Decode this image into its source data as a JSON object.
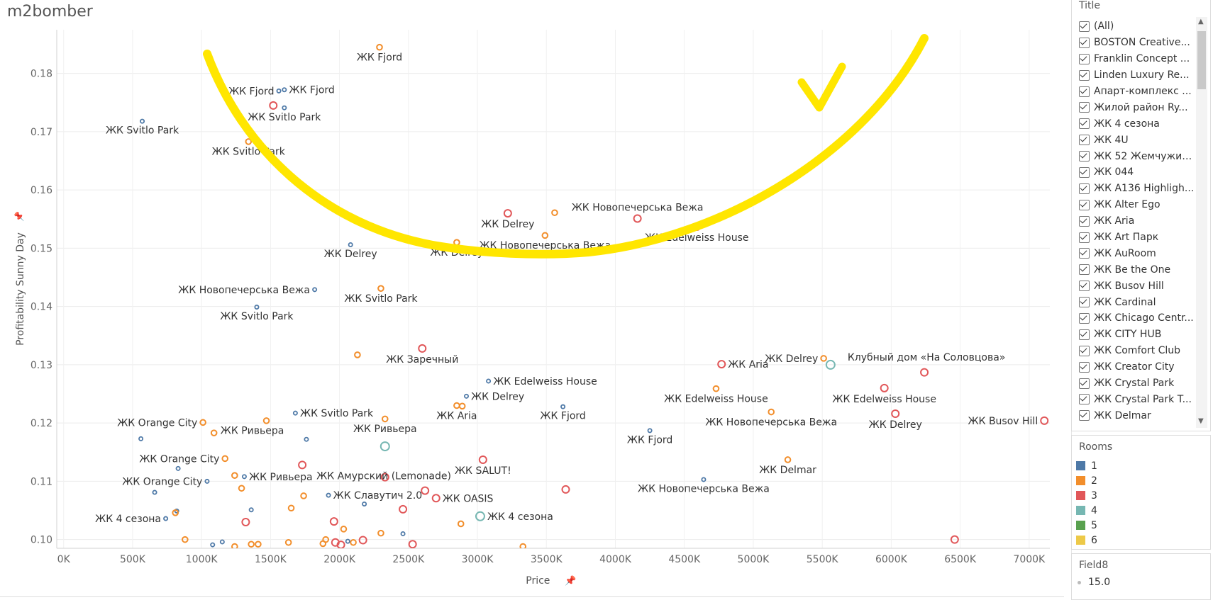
{
  "app_title": "m2bomber",
  "chart_data": {
    "type": "scatter",
    "xlabel": "Price",
    "ylabel": "Profitability Sunny Day",
    "xlim": [
      -50000,
      7150000
    ],
    "ylim": [
      0.0985,
      0.1875
    ],
    "x_ticks": [
      0,
      500000,
      1000000,
      1500000,
      2000000,
      2500000,
      3000000,
      3500000,
      4000000,
      4500000,
      5000000,
      5500000,
      6000000,
      6500000,
      7000000
    ],
    "x_tick_labels": [
      "0K",
      "500K",
      "1000K",
      "1500K",
      "2000K",
      "2500K",
      "3000K",
      "3500K",
      "4000K",
      "4500K",
      "5000K",
      "5500K",
      "6000K",
      "6500K",
      "7000K"
    ],
    "y_ticks": [
      0.1,
      0.11,
      0.12,
      0.13,
      0.14,
      0.15,
      0.16,
      0.17,
      0.18
    ],
    "y_tick_labels": [
      "0.10",
      "0.11",
      "0.12",
      "0.13",
      "0.14",
      "0.15",
      "0.16",
      "0.17",
      "0.18"
    ],
    "grid": true,
    "room_colors": {
      "1": "#4e79a7",
      "2": "#f28e2b",
      "3": "#e15759",
      "4": "#76b7b2",
      "5": "#59a14f",
      "6": "#edc948"
    },
    "points": [
      {
        "x": 2290000,
        "y": 0.1845,
        "rooms": 2,
        "label": "ЖК Fjord",
        "lp": "below"
      },
      {
        "x": 1560000,
        "y": 0.177,
        "rooms": 1,
        "label": "ЖК Fjord",
        "lp": "left"
      },
      {
        "x": 1600000,
        "y": 0.1772,
        "rooms": 1,
        "label": "ЖК Fjord",
        "lp": "right"
      },
      {
        "x": 1520000,
        "y": 0.1745,
        "rooms": 3,
        "label": "",
        "lp": "none"
      },
      {
        "x": 1600000,
        "y": 0.1741,
        "rooms": 1,
        "label": "ЖК Svitlo Park",
        "lp": "below"
      },
      {
        "x": 570000,
        "y": 0.1718,
        "rooms": 1,
        "label": "ЖК Svitlo Park",
        "lp": "below"
      },
      {
        "x": 1340000,
        "y": 0.1683,
        "rooms": 2,
        "label": "ЖК Svitlo Park",
        "lp": "below"
      },
      {
        "x": 3220000,
        "y": 0.156,
        "rooms": 3,
        "label": "ЖК Delrey",
        "lp": "below"
      },
      {
        "x": 3560000,
        "y": 0.1561,
        "rooms": 2,
        "label": "",
        "lp": "none"
      },
      {
        "x": 3490000,
        "y": 0.1522,
        "rooms": 2,
        "label": "ЖК Новопечерська Вежа",
        "lp": "below"
      },
      {
        "x": 4160000,
        "y": 0.1551,
        "rooms": 3,
        "label": "ЖК Новопечерська Вежа",
        "lp": "above"
      },
      {
        "x": 4590000,
        "y": 0.1537,
        "rooms": 3,
        "label": "ЖК Edelweiss House",
        "lp": "below"
      },
      {
        "x": 2080000,
        "y": 0.1506,
        "rooms": 1,
        "label": "ЖК Delrey",
        "lp": "below"
      },
      {
        "x": 2850000,
        "y": 0.151,
        "rooms": 2,
        "label": "ЖК Delrey",
        "lp": "below"
      },
      {
        "x": 1820000,
        "y": 0.1429,
        "rooms": 1,
        "label": "ЖК Новопечерська Вежа",
        "lp": "left"
      },
      {
        "x": 2300000,
        "y": 0.1431,
        "rooms": 2,
        "label": "ЖК Svitlo Park",
        "lp": "below"
      },
      {
        "x": 1400000,
        "y": 0.1399,
        "rooms": 1,
        "label": "ЖК Svitlo Park",
        "lp": "below"
      },
      {
        "x": 2130000,
        "y": 0.1317,
        "rooms": 2,
        "label": "",
        "lp": "none"
      },
      {
        "x": 2600000,
        "y": 0.1328,
        "rooms": 3,
        "label": "ЖК Заречный",
        "lp": "below"
      },
      {
        "x": 4770000,
        "y": 0.1301,
        "rooms": 3,
        "label": "ЖК Aria",
        "lp": "right"
      },
      {
        "x": 5510000,
        "y": 0.1311,
        "rooms": 2,
        "label": "ЖК Delrey",
        "lp": "left"
      },
      {
        "x": 5560000,
        "y": 0.13,
        "rooms": 4,
        "label": "Клубный дом «На Соловцова»",
        "lp": "aboveright"
      },
      {
        "x": 6240000,
        "y": 0.1287,
        "rooms": 3,
        "label": "",
        "lp": "none"
      },
      {
        "x": 5950000,
        "y": 0.126,
        "rooms": 3,
        "label": "ЖК Edelweiss House",
        "lp": "below"
      },
      {
        "x": 3080000,
        "y": 0.1272,
        "rooms": 1,
        "label": "ЖК Edelweiss House",
        "lp": "right"
      },
      {
        "x": 2920000,
        "y": 0.1246,
        "rooms": 1,
        "label": "ЖК Delrey",
        "lp": "right"
      },
      {
        "x": 2850000,
        "y": 0.123,
        "rooms": 2,
        "label": "ЖК Aria",
        "lp": "below"
      },
      {
        "x": 2890000,
        "y": 0.1229,
        "rooms": 2,
        "label": "",
        "lp": "none"
      },
      {
        "x": 3620000,
        "y": 0.1228,
        "rooms": 1,
        "label": "ЖК Fjord",
        "lp": "below"
      },
      {
        "x": 4730000,
        "y": 0.1259,
        "rooms": 2,
        "label": "ЖК Edelweiss House",
        "lp": "below"
      },
      {
        "x": 5130000,
        "y": 0.1219,
        "rooms": 2,
        "label": "ЖК Новопечерська Вежа",
        "lp": "below"
      },
      {
        "x": 6030000,
        "y": 0.1216,
        "rooms": 3,
        "label": "ЖК Delrey",
        "lp": "below"
      },
      {
        "x": 7110000,
        "y": 0.1204,
        "rooms": 3,
        "label": "ЖК Busov Hill",
        "lp": "left"
      },
      {
        "x": 4250000,
        "y": 0.1187,
        "rooms": 1,
        "label": "ЖК Fjord",
        "lp": "below"
      },
      {
        "x": 1680000,
        "y": 0.1217,
        "rooms": 1,
        "label": "ЖК Svitlo Park",
        "lp": "right"
      },
      {
        "x": 1470000,
        "y": 0.1204,
        "rooms": 2,
        "label": "ЖК Ривьера",
        "lp": "belowleft"
      },
      {
        "x": 2330000,
        "y": 0.1207,
        "rooms": 2,
        "label": "ЖК Ривьера",
        "lp": "below"
      },
      {
        "x": 1010000,
        "y": 0.1201,
        "rooms": 2,
        "label": "ЖК Orange City",
        "lp": "left"
      },
      {
        "x": 1090000,
        "y": 0.1183,
        "rooms": 2,
        "label": "",
        "lp": "none"
      },
      {
        "x": 560000,
        "y": 0.1173,
        "rooms": 1,
        "label": "",
        "lp": "none"
      },
      {
        "x": 1760000,
        "y": 0.1172,
        "rooms": 1,
        "label": "",
        "lp": "none"
      },
      {
        "x": 2330000,
        "y": 0.116,
        "rooms": 4,
        "label": "",
        "lp": "none"
      },
      {
        "x": 1170000,
        "y": 0.1139,
        "rooms": 2,
        "label": "ЖК Orange City",
        "lp": "left"
      },
      {
        "x": 830000,
        "y": 0.1122,
        "rooms": 1,
        "label": "",
        "lp": "none"
      },
      {
        "x": 1730000,
        "y": 0.1128,
        "rooms": 3,
        "label": "ЖК Амурский (Lemonade)",
        "lp": "belowright"
      },
      {
        "x": 3040000,
        "y": 0.1137,
        "rooms": 3,
        "label": "ЖК SALUT!",
        "lp": "below"
      },
      {
        "x": 5250000,
        "y": 0.1137,
        "rooms": 2,
        "label": "ЖК Delmar",
        "lp": "below"
      },
      {
        "x": 1240000,
        "y": 0.111,
        "rooms": 2,
        "label": "",
        "lp": "none"
      },
      {
        "x": 1310000,
        "y": 0.1108,
        "rooms": 1,
        "label": "ЖК Ривьера",
        "lp": "right"
      },
      {
        "x": 2330000,
        "y": 0.1107,
        "rooms": 3,
        "label": "",
        "lp": "none"
      },
      {
        "x": 1040000,
        "y": 0.11,
        "rooms": 1,
        "label": "ЖК Orange City",
        "lp": "left"
      },
      {
        "x": 4640000,
        "y": 0.1103,
        "rooms": 1,
        "label": "ЖК Новопечерська Вежа",
        "lp": "below"
      },
      {
        "x": 660000,
        "y": 0.1081,
        "rooms": 1,
        "label": "",
        "lp": "none"
      },
      {
        "x": 1290000,
        "y": 0.1088,
        "rooms": 2,
        "label": "",
        "lp": "none"
      },
      {
        "x": 1920000,
        "y": 0.1076,
        "rooms": 1,
        "label": "ЖК Славутич 2.0",
        "lp": "right"
      },
      {
        "x": 2620000,
        "y": 0.1084,
        "rooms": 3,
        "label": "",
        "lp": "none"
      },
      {
        "x": 2700000,
        "y": 0.1071,
        "rooms": 3,
        "label": "ЖК OASIS",
        "lp": "right"
      },
      {
        "x": 3640000,
        "y": 0.1086,
        "rooms": 3,
        "label": "",
        "lp": "none"
      },
      {
        "x": 1740000,
        "y": 0.1075,
        "rooms": 2,
        "label": "",
        "lp": "none"
      },
      {
        "x": 2180000,
        "y": 0.1061,
        "rooms": 1,
        "label": "",
        "lp": "none"
      },
      {
        "x": 1360000,
        "y": 0.1051,
        "rooms": 1,
        "label": "",
        "lp": "none"
      },
      {
        "x": 1650000,
        "y": 0.1054,
        "rooms": 2,
        "label": "",
        "lp": "none"
      },
      {
        "x": 2460000,
        "y": 0.1052,
        "rooms": 3,
        "label": "",
        "lp": "none"
      },
      {
        "x": 3020000,
        "y": 0.104,
        "rooms": 4,
        "label": "ЖК 4 сезона",
        "lp": "right"
      },
      {
        "x": 820000,
        "y": 0.1049,
        "rooms": 1,
        "label": "",
        "lp": "none"
      },
      {
        "x": 810000,
        "y": 0.1046,
        "rooms": 2,
        "label": "",
        "lp": "none"
      },
      {
        "x": 740000,
        "y": 0.1036,
        "rooms": 1,
        "label": "ЖК 4 сезона",
        "lp": "left"
      },
      {
        "x": 1320000,
        "y": 0.103,
        "rooms": 3,
        "label": "",
        "lp": "none"
      },
      {
        "x": 1960000,
        "y": 0.1031,
        "rooms": 3,
        "label": "",
        "lp": "none"
      },
      {
        "x": 2880000,
        "y": 0.1027,
        "rooms": 2,
        "label": "",
        "lp": "none"
      },
      {
        "x": 2030000,
        "y": 0.1018,
        "rooms": 2,
        "label": "",
        "lp": "none"
      },
      {
        "x": 2300000,
        "y": 0.1011,
        "rooms": 2,
        "label": "",
        "lp": "none"
      },
      {
        "x": 2460000,
        "y": 0.101,
        "rooms": 1,
        "label": "",
        "lp": "none"
      },
      {
        "x": 6460000,
        "y": 0.1,
        "rooms": 3,
        "label": "",
        "lp": "none"
      },
      {
        "x": 880000,
        "y": 0.1,
        "rooms": 2,
        "label": "",
        "lp": "none"
      },
      {
        "x": 1150000,
        "y": 0.0996,
        "rooms": 1,
        "label": "",
        "lp": "none"
      },
      {
        "x": 1080000,
        "y": 0.0991,
        "rooms": 1,
        "label": "",
        "lp": "none"
      },
      {
        "x": 1240000,
        "y": 0.0988,
        "rooms": 2,
        "label": "",
        "lp": "none"
      },
      {
        "x": 1360000,
        "y": 0.0992,
        "rooms": 2,
        "label": "",
        "lp": "none"
      },
      {
        "x": 1410000,
        "y": 0.0992,
        "rooms": 2,
        "label": "",
        "lp": "none"
      },
      {
        "x": 1630000,
        "y": 0.0995,
        "rooms": 2,
        "label": "",
        "lp": "none"
      },
      {
        "x": 1900000,
        "y": 0.1,
        "rooms": 2,
        "label": "",
        "lp": "none"
      },
      {
        "x": 1880000,
        "y": 0.0993,
        "rooms": 2,
        "label": "",
        "lp": "none"
      },
      {
        "x": 1970000,
        "y": 0.0995,
        "rooms": 3,
        "label": "",
        "lp": "none"
      },
      {
        "x": 2010000,
        "y": 0.0991,
        "rooms": 3,
        "label": "",
        "lp": "none"
      },
      {
        "x": 2060000,
        "y": 0.0997,
        "rooms": 1,
        "label": "",
        "lp": "none"
      },
      {
        "x": 2100000,
        "y": 0.0995,
        "rooms": 2,
        "label": "",
        "lp": "none"
      },
      {
        "x": 2170000,
        "y": 0.0999,
        "rooms": 3,
        "label": "",
        "lp": "none"
      },
      {
        "x": 2530000,
        "y": 0.0992,
        "rooms": 3,
        "label": "",
        "lp": "none"
      },
      {
        "x": 3330000,
        "y": 0.0988,
        "rooms": 2,
        "label": "",
        "lp": "none"
      }
    ]
  },
  "filter": {
    "title": "Title",
    "items": [
      "(All)",
      "BOSTON Creative...",
      "Franklin Concept ...",
      "Linden Luxury Re...",
      "Апарт-комплекс ...",
      "Жилой район Ry...",
      "ЖК 4 сезона",
      "ЖК 4U",
      "ЖК 52 Жемчужин...",
      "ЖК 044",
      "ЖК A136 Highligh...",
      "ЖК Alter Ego",
      "ЖК Aria",
      "ЖК Art Парк",
      "ЖК AuRoom",
      "ЖК Be the One",
      "ЖК Busov Hill",
      "ЖК Cardinal",
      "ЖК Chicago Centr...",
      "ЖК CITY HUB",
      "ЖК Comfort Club",
      "ЖК Creator City",
      "ЖК Crystal Park",
      "ЖК Crystal Park T...",
      "ЖК Delmar"
    ]
  },
  "rooms_legend": {
    "title": "Rooms",
    "items": [
      {
        "label": "1",
        "color": "#4e79a7"
      },
      {
        "label": "2",
        "color": "#f28e2b"
      },
      {
        "label": "3",
        "color": "#e15759"
      },
      {
        "label": "4",
        "color": "#76b7b2"
      },
      {
        "label": "5",
        "color": "#59a14f"
      },
      {
        "label": "6",
        "color": "#edc948"
      }
    ]
  },
  "size_legend": {
    "title": "Field8",
    "value": "15.0"
  },
  "annotation": {
    "color": "#ffe600"
  }
}
